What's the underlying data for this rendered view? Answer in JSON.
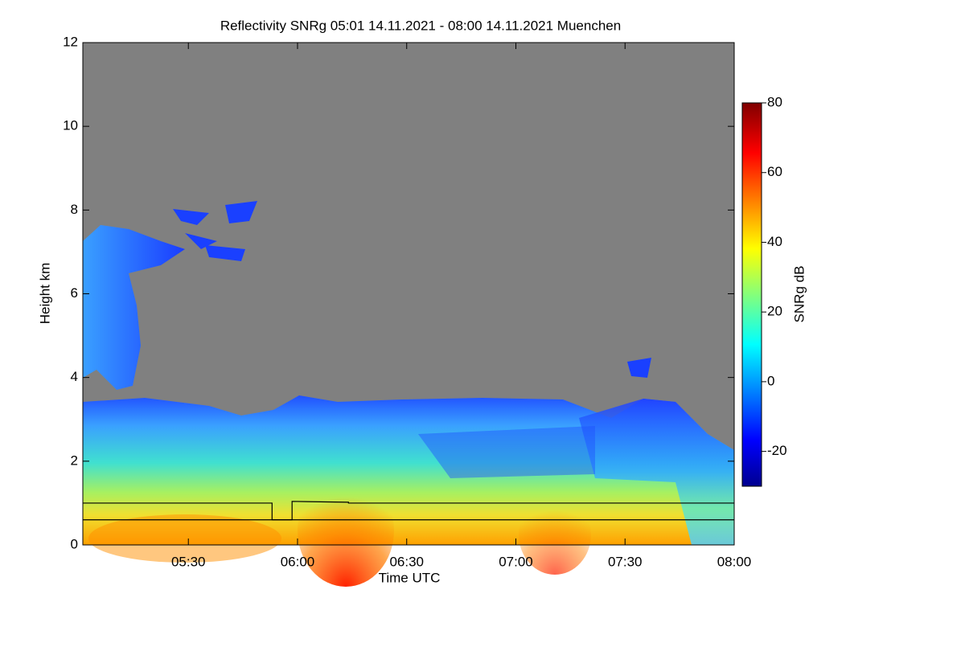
{
  "chart_data": {
    "type": "heatmap",
    "title": "Reflectivity SNRg   05:01 14.11.2021 - 08:00 14.11.2021 Muenchen",
    "xlabel": "Time UTC",
    "ylabel": "Height km",
    "xlim": [
      301,
      480
    ],
    "xticks": [
      {
        "value": 330,
        "label": "05:30"
      },
      {
        "value": 360,
        "label": "06:00"
      },
      {
        "value": 390,
        "label": "06:30"
      },
      {
        "value": 420,
        "label": "07:00"
      },
      {
        "value": 450,
        "label": "07:30"
      },
      {
        "value": 480,
        "label": "08:00"
      }
    ],
    "ylim": [
      0,
      12
    ],
    "yticks": [
      0,
      2,
      4,
      6,
      8,
      10,
      12
    ],
    "colorbar": {
      "label": "SNRg dB",
      "lim": [
        -30,
        80
      ],
      "ticks": [
        -20,
        0,
        20,
        40,
        60,
        80
      ],
      "colormap": "jet"
    },
    "lines": [
      {
        "color": "#000000",
        "x": [
          301,
          353,
          353,
          358.5,
          358.5,
          374,
          374,
          480
        ],
        "y": [
          1.0,
          1.0,
          0.6,
          0.6,
          1.04,
          1.02,
          1.0,
          1.0
        ]
      },
      {
        "color": "#000000",
        "x": [
          301,
          480
        ],
        "y": [
          0.6,
          0.6
        ]
      }
    ]
  }
}
